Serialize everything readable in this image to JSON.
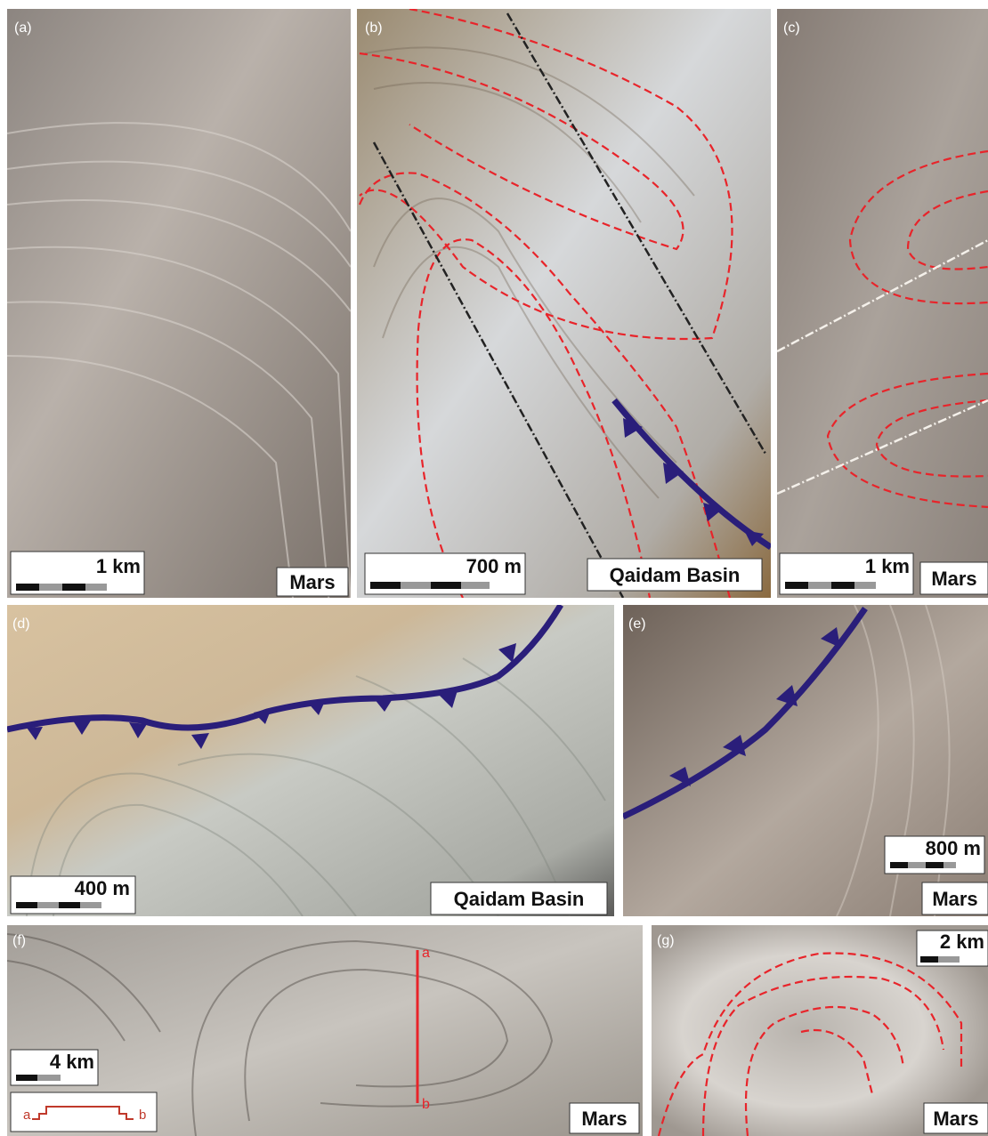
{
  "panels": [
    {
      "label": "(a)",
      "location": "Mars",
      "scale": "1 km"
    },
    {
      "label": "(b)",
      "location": "Qaidam Basin",
      "scale": "700 m"
    },
    {
      "label": "(c)",
      "location": "Mars",
      "scale": "1 km"
    },
    {
      "label": "(d)",
      "location": "Qaidam Basin",
      "scale": "400 m"
    },
    {
      "label": "(e)",
      "location": "Mars",
      "scale": "800 m"
    },
    {
      "label": "(f)",
      "location": "Mars",
      "scale": "4 km"
    },
    {
      "label": "(g)",
      "location": "Mars",
      "scale": "2 km"
    }
  ],
  "profile": {
    "start": "a",
    "end": "b"
  }
}
